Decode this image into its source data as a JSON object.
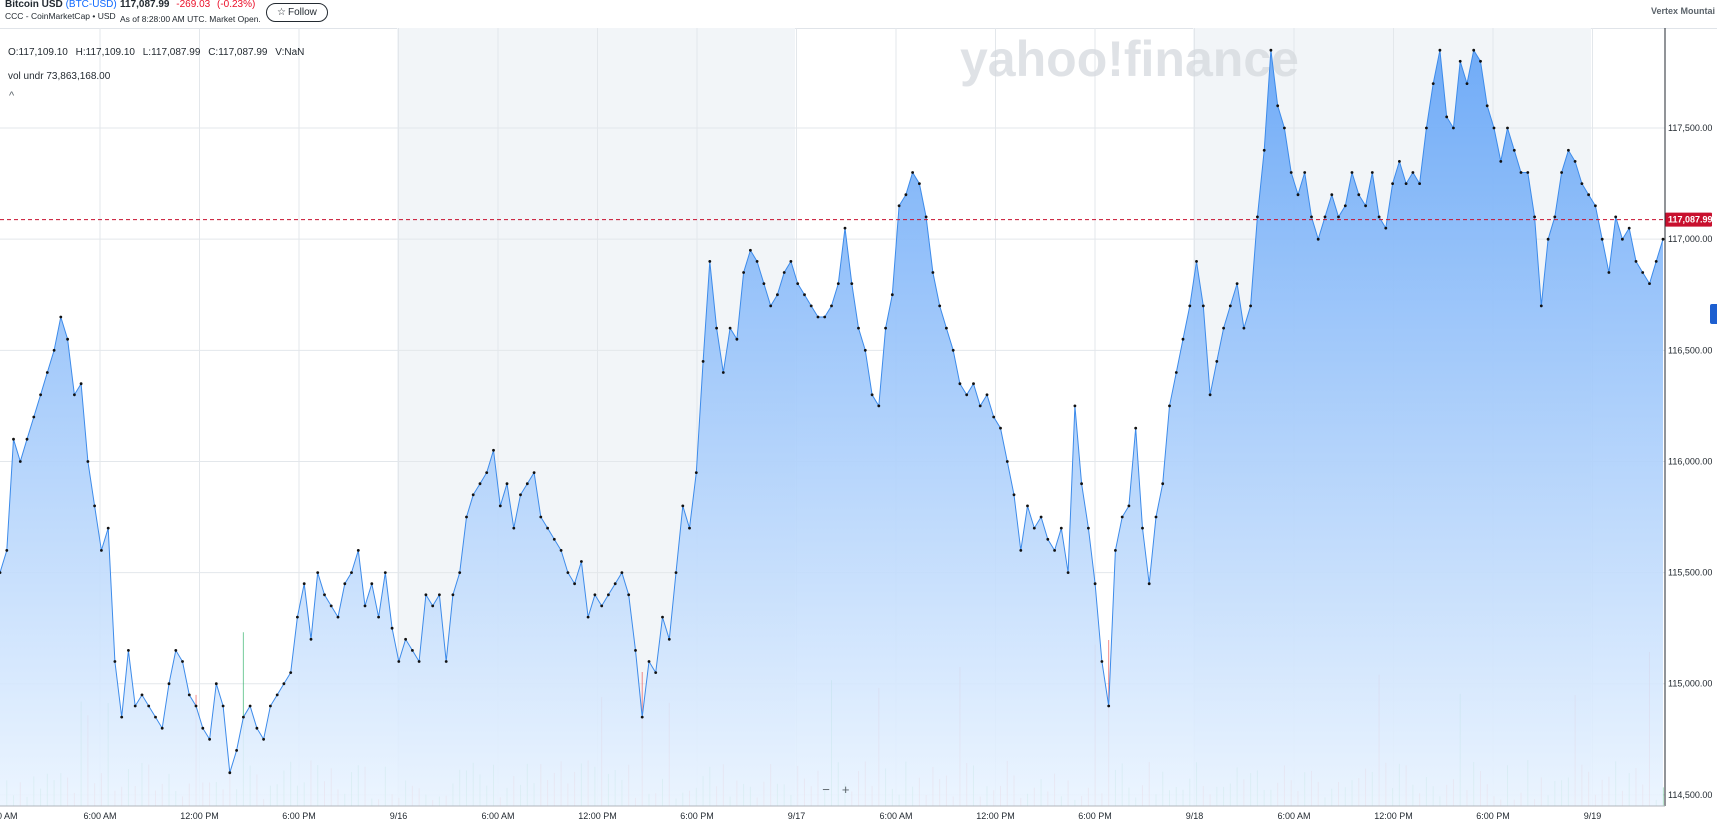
{
  "header": {
    "name": "Bitcoin USD",
    "symbol": "(BTC-USD)",
    "source": "CCC - CoinMarketCap • USD",
    "price": "117,087.99",
    "change": "-269.03",
    "change_pct": "(-0.23%)",
    "as_of": "As of 8:28:00 AM UTC. Market Open.",
    "follow_label": "Follow",
    "right_label": "Vertex Mountai"
  },
  "ohlc": {
    "open": "O:117,109.10",
    "high": "H:117,109.10",
    "low": "L:117,087.99",
    "close": "C:117,087.99",
    "volume": "V:NaN"
  },
  "volume_line": "vol undr  73,863,168.00",
  "collapse_glyph": "^",
  "zoom": {
    "minus": "−",
    "plus": "+"
  },
  "watermark": "yahoo!finance",
  "colors": {
    "line": "#3d8bea",
    "up": "#18a957",
    "down": "#eb3f3f",
    "current": "#c8102e"
  },
  "chart_data": {
    "type": "area",
    "series": [
      {
        "values": [
          115500,
          115600,
          116100,
          116000,
          116100,
          116200,
          116300,
          116400,
          116500,
          116650,
          116550,
          116300,
          116350,
          116000,
          115800,
          115600,
          115700,
          115100,
          114850,
          115150,
          114900,
          114950,
          114900,
          114850,
          114800,
          115000,
          115150,
          115100,
          114950,
          114900,
          114800,
          114750,
          115000,
          114900,
          114600,
          114700,
          114850,
          114900,
          114800,
          114750,
          114900,
          114950,
          115000,
          115050,
          115300,
          115450,
          115200,
          115500,
          115400,
          115350,
          115300,
          115450,
          115500,
          115600,
          115350,
          115450,
          115300,
          115500,
          115250,
          115100,
          115200,
          115150,
          115100,
          115400,
          115350,
          115400,
          115100,
          115400,
          115500,
          115750,
          115850,
          115900,
          115950,
          116050,
          115800,
          115900,
          115700,
          115850,
          115900,
          115950,
          115750,
          115700,
          115650,
          115600,
          115500,
          115450,
          115550,
          115300,
          115400,
          115350,
          115400,
          115450,
          115500,
          115400,
          115150,
          114850,
          115100,
          115050,
          115300,
          115200,
          115500,
          115800,
          115700,
          115950,
          116450,
          116900,
          116600,
          116400,
          116600,
          116550,
          116850,
          116950,
          116900,
          116800,
          116700,
          116750,
          116850,
          116900,
          116800,
          116750,
          116700,
          116650,
          116650,
          116700,
          116800,
          117050,
          116800,
          116600,
          116500,
          116300,
          116250,
          116600,
          116750,
          117150,
          117200,
          117300,
          117250,
          117100,
          116850,
          116700,
          116600,
          116500,
          116350,
          116300,
          116350,
          116250,
          116300,
          116200,
          116150,
          116000,
          115850,
          115600,
          115800,
          115700,
          115750,
          115650,
          115600,
          115700,
          115500,
          116250,
          115900,
          115700,
          115450,
          115100,
          114900,
          115600,
          115750,
          115800,
          116150,
          115700,
          115450,
          115750,
          115900,
          116250,
          116400,
          116550,
          116700,
          116900,
          116700,
          116300,
          116450,
          116600,
          116700,
          116800,
          116600,
          116700,
          117100,
          117400,
          117850,
          117600,
          117500,
          117300,
          117200,
          117300,
          117100,
          117000,
          117100,
          117200,
          117100,
          117150,
          117300,
          117200,
          117150,
          117300,
          117100,
          117050,
          117250,
          117350,
          117250,
          117300,
          117250,
          117500,
          117700,
          117850,
          117550,
          117500,
          117800,
          117700,
          117850,
          117800,
          117600,
          117500,
          117350,
          117500,
          117400,
          117300,
          117300,
          117100,
          116700,
          117000,
          117100,
          117300,
          117400,
          117350,
          117250,
          117200,
          117150,
          117000,
          116850,
          117100,
          117000,
          117050,
          116900,
          116850,
          116800,
          116900,
          117000
        ]
      }
    ],
    "x_ticks": [
      "6:00 AM",
      "12:00 PM",
      "6:00 PM",
      "9/16",
      "6:00 AM",
      "12:00 PM",
      "6:00 PM",
      "9/17",
      "6:00 AM",
      "12:00 PM",
      "6:00 PM",
      "9/18",
      "6:00 AM",
      "12:00 PM",
      "6:00 PM",
      "9/19"
    ],
    "first_tick_partial": "0 AM",
    "y_ticks": [
      114500,
      115000,
      115500,
      116000,
      116500,
      117000,
      117500
    ],
    "y_tick_labels": [
      "114,500.00",
      "115,000.00",
      "115,500.00",
      "116,000.00",
      "116,500.00",
      "117,000.00",
      "117,500.00"
    ],
    "ylim": [
      114450,
      117950
    ],
    "current_value": 117087.99,
    "current_label": "117,087.99",
    "grid": true,
    "has_volume": true
  }
}
